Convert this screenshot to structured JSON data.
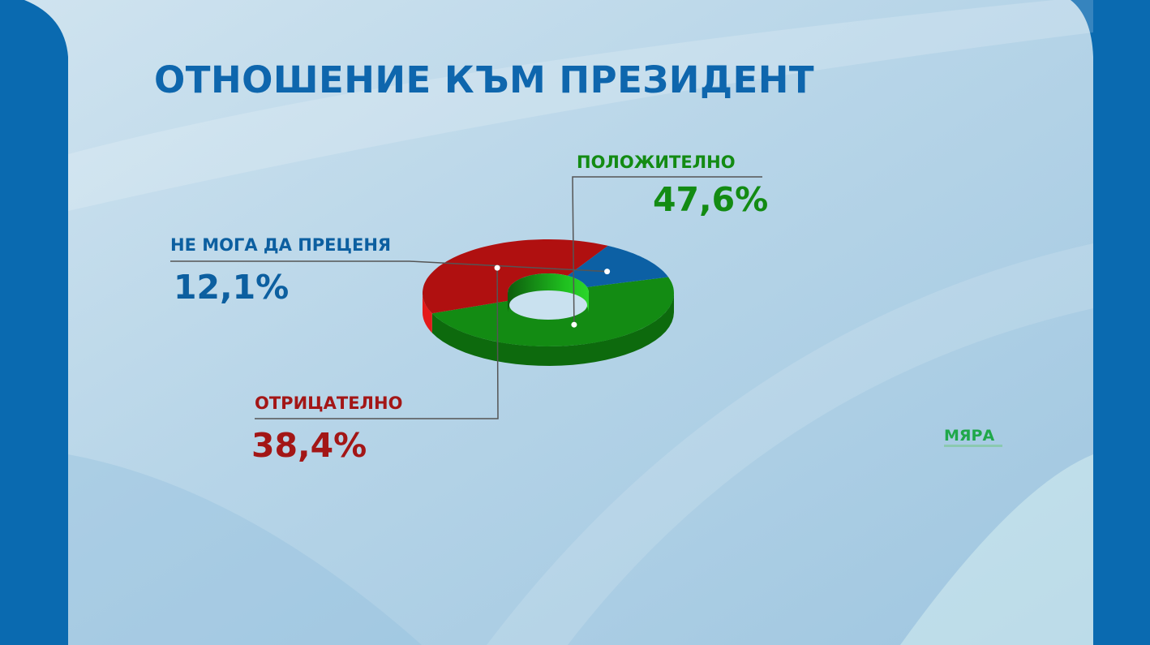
{
  "title": "ОТНОШЕНИЕ КЪМ ПРЕЗИДЕНТ",
  "logo": "МЯРА",
  "colors": {
    "frame": "#0a6ab0",
    "title": "#0e66ad",
    "positive": "#138b13",
    "negative": "#a31616",
    "undecided": "#0c5fa0"
  },
  "chart_data": {
    "type": "pie",
    "title": "ОТНОШЕНИЕ КЪМ ПРЕЗИДЕНТ",
    "donut": true,
    "categories": [
      "ПОЛОЖИТЕЛНО",
      "ОТРИЦАТЕЛНО",
      "НЕ МОГА ДА ПРЕЦЕНЯ"
    ],
    "values": [
      47.6,
      38.4,
      12.1
    ],
    "labels": [
      "47,6%",
      "38,4%",
      "12,1%"
    ],
    "colors": [
      "#138b13",
      "#b01010",
      "#0c60a4"
    ]
  }
}
